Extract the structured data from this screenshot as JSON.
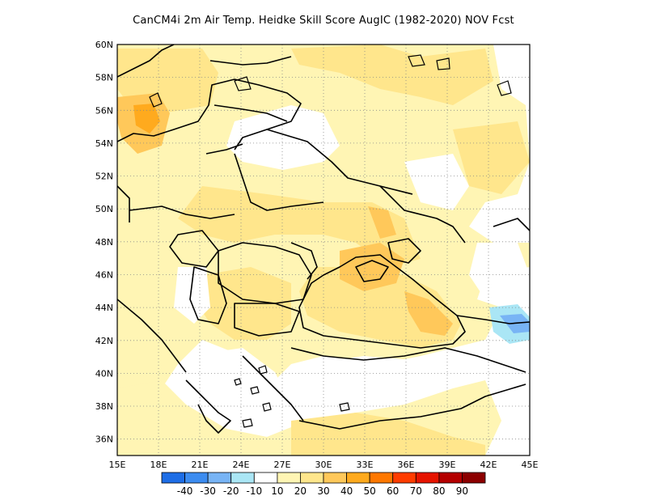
{
  "title": "CanCM4i  2m Air Temp. Heidke Skill Score AugIC (1982-2020) NOV Fcst",
  "map": {
    "lon_ticks": [
      "15E",
      "18E",
      "21E",
      "24E",
      "27E",
      "30E",
      "33E",
      "36E",
      "39E",
      "42E",
      "45E"
    ],
    "lat_ticks": [
      "60N",
      "58N",
      "56N",
      "54N",
      "52N",
      "50N",
      "48N",
      "46N",
      "44N",
      "42N",
      "40N",
      "38N",
      "36N"
    ],
    "lon_range": [
      15,
      45
    ],
    "lat_range": [
      35,
      60
    ],
    "grid": "dotted",
    "region": "Eastern Europe / Black Sea"
  },
  "colorbar": {
    "labels": [
      "-40",
      "-30",
      "-20",
      "-10",
      "10",
      "20",
      "30",
      "40",
      "50",
      "60",
      "70",
      "80",
      "90"
    ],
    "colors": [
      "#1e6ee6",
      "#3c8cf0",
      "#78b4f5",
      "#aae6f5",
      "#ffffff",
      "#fff5b4",
      "#ffe68c",
      "#ffc85a",
      "#ffaa1e",
      "#ff7800",
      "#ff3c00",
      "#e61400",
      "#b40000",
      "#8c0000"
    ]
  },
  "palette": {
    "light_yellow": "#fff5b4",
    "yellow": "#ffe68c",
    "orange_light": "#ffc85a",
    "orange": "#ffaa1e",
    "cyan": "#aae6f5",
    "blue_light": "#78b4f5"
  }
}
